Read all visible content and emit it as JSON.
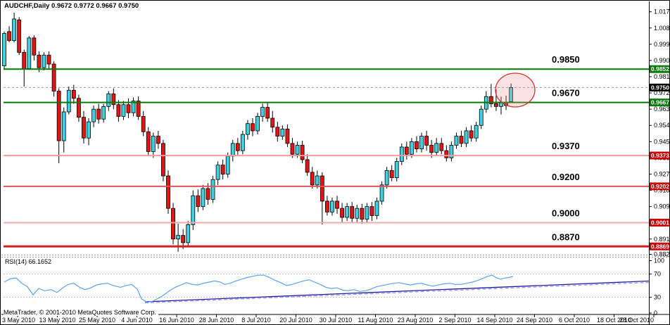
{
  "window": {
    "title_line": "AUDCHF,Daily  0.9672 0.9772 0.9667 0.9750",
    "symbol": "AUDCHF",
    "timeframe": "Daily",
    "ohlc": {
      "open": "0.9672",
      "high": "0.9772",
      "low": "0.9667",
      "close": "0.9750"
    }
  },
  "footer": {
    "copyright": "MetaTrader, © 2001-2010 MetaQuotes Software Corp."
  },
  "colors": {
    "bull": "#40d0e0",
    "bear": "#e01515",
    "wick": "#000000",
    "green_level": "#007a00",
    "current_dash": "#999999",
    "rsi_line": "#5aa2f0",
    "trend_solid": "#2020a0",
    "trend_dashed": "#9c9ce6",
    "badge_green": "#007a00",
    "badge_black": "#000000",
    "badge_red": "#cc0000",
    "ellipse_stroke": "#d83030",
    "ellipse_fill": "rgba(244,150,150,0.28)"
  },
  "price_axis": {
    "plain_ticks": [
      "1.0170",
      "1.0080",
      "0.9990",
      "0.9900",
      "0.9810",
      "0.9720",
      "0.9630",
      "0.9540",
      "0.9450",
      "0.9360",
      "0.9270",
      "0.9180",
      "0.9090",
      "0.8910",
      "0.8825"
    ],
    "badges": [
      {
        "text": "0.9852",
        "color": "#007a00"
      },
      {
        "text": "0.9750",
        "color": "#000000"
      },
      {
        "text": "0.9667",
        "color": "#007a00"
      },
      {
        "text": "0.9373",
        "color": "#cc0000"
      },
      {
        "text": "0.9202",
        "color": "#cc0000"
      },
      {
        "text": "0.9001",
        "color": "#cc0000"
      },
      {
        "text": "0.8869",
        "color": "#cc0000"
      }
    ]
  },
  "date_axis": {
    "labels": [
      "3 May 2010",
      "13 May 2010",
      "25 May 2010",
      "4 Jun 2010",
      "16 Jun 2010",
      "28 Jun 2010",
      "8 Jul 2010",
      "20 Jul 2010",
      "30 Jul 2010",
      "11 Aug 2010",
      "23 Aug 2010",
      "2 Sep 2010",
      "14 Sep 2010",
      "24 Sep 2010",
      "6 Oct 2010",
      "18 Oct 2010",
      "28 Oct 2010"
    ]
  },
  "rsi_pane": {
    "label": "RSI(14) 66.1652",
    "period": 14,
    "current_value": 66.1652,
    "axis_labels": [
      "100",
      "70",
      "30",
      "0"
    ],
    "axis_values": [
      100,
      70,
      30,
      0
    ],
    "guide_levels": [
      70,
      30
    ]
  },
  "chart_data": {
    "type": "candlestick",
    "symbol": "AUDCHF",
    "timeframe": "Daily",
    "ylim": [
      0.8815,
      1.0185
    ],
    "legend_position": "top-left",
    "grid": "horizontal-levels-only",
    "levels": [
      {
        "label": "0.9850",
        "price": 0.9852,
        "color": "#007a00",
        "width": 2
      },
      {
        "label": "0.9670",
        "price": 0.9667,
        "color": "#007a00",
        "width": 2
      },
      {
        "label": "0.9370",
        "price": 0.9373,
        "color": "#f49a9a",
        "width": 2
      },
      {
        "label": "0.9200",
        "price": 0.9202,
        "color": "#e35555",
        "width": 2
      },
      {
        "label": "0.9000",
        "price": 0.9001,
        "color": "#f4a8a8",
        "width": 2
      },
      {
        "label": "0.8870",
        "price": 0.8869,
        "color": "#d62020",
        "width": 3
      }
    ],
    "current_price_line": {
      "price": 0.975,
      "style": "dashed"
    },
    "highlight_ellipse": {
      "cx": 731,
      "cy": 127,
      "rx": 28,
      "ry": 24
    },
    "candles_columns": [
      "open",
      "high",
      "low",
      "close"
    ],
    "candles": [
      [
        0.987,
        1.006,
        0.985,
        1.005
      ],
      [
        1.006,
        1.009,
        1.0,
        1.001
      ],
      [
        1.001,
        1.0165,
        1.0,
        1.013
      ],
      [
        1.0125,
        1.014,
        0.993,
        0.9945
      ],
      [
        0.9945,
        0.996,
        0.9755,
        0.9855
      ],
      [
        0.9855,
        1.0035,
        0.985,
        1.0025
      ],
      [
        1.0025,
        1.004,
        0.99,
        0.993
      ],
      [
        0.993,
        0.995,
        0.9835,
        0.986
      ],
      [
        0.986,
        0.9945,
        0.9845,
        0.993
      ],
      [
        0.993,
        0.995,
        0.9855,
        0.988
      ],
      [
        0.988,
        0.9895,
        0.97,
        0.973
      ],
      [
        0.973,
        0.9745,
        0.933,
        0.9455
      ],
      [
        0.9455,
        0.964,
        0.939,
        0.9615
      ],
      [
        0.9615,
        0.9755,
        0.96,
        0.9735
      ],
      [
        0.9735,
        0.9765,
        0.966,
        0.969
      ],
      [
        0.969,
        0.971,
        0.956,
        0.9585
      ],
      [
        0.9585,
        0.962,
        0.944,
        0.947
      ],
      [
        0.947,
        0.958,
        0.943,
        0.956
      ],
      [
        0.956,
        0.965,
        0.953,
        0.963
      ],
      [
        0.963,
        0.966,
        0.955,
        0.9575
      ],
      [
        0.9575,
        0.966,
        0.9555,
        0.9645
      ],
      [
        0.9645,
        0.973,
        0.962,
        0.9715
      ],
      [
        0.9715,
        0.9745,
        0.963,
        0.9655
      ],
      [
        0.9655,
        0.968,
        0.956,
        0.959
      ],
      [
        0.959,
        0.9675,
        0.957,
        0.9655
      ],
      [
        0.9655,
        0.969,
        0.958,
        0.961
      ],
      [
        0.961,
        0.9695,
        0.959,
        0.9675
      ],
      [
        0.9675,
        0.97,
        0.957,
        0.959
      ],
      [
        0.959,
        0.962,
        0.948,
        0.9505
      ],
      [
        0.9505,
        0.953,
        0.937,
        0.9395
      ],
      [
        0.9395,
        0.95,
        0.936,
        0.948
      ],
      [
        0.948,
        0.951,
        0.941,
        0.944
      ],
      [
        0.944,
        0.946,
        0.923,
        0.926
      ],
      [
        0.926,
        0.929,
        0.905,
        0.908
      ],
      [
        0.908,
        0.911,
        0.888,
        0.891
      ],
      [
        0.891,
        0.8995,
        0.884,
        0.893
      ],
      [
        0.893,
        0.8965,
        0.8855,
        0.889
      ],
      [
        0.889,
        0.901,
        0.887,
        0.899
      ],
      [
        0.899,
        0.918,
        0.896,
        0.915
      ],
      [
        0.915,
        0.9185,
        0.906,
        0.909
      ],
      [
        0.909,
        0.921,
        0.907,
        0.919
      ],
      [
        0.919,
        0.922,
        0.91,
        0.913
      ],
      [
        0.913,
        0.926,
        0.911,
        0.924
      ],
      [
        0.924,
        0.934,
        0.921,
        0.932
      ],
      [
        0.932,
        0.935,
        0.924,
        0.927
      ],
      [
        0.927,
        0.939,
        0.925,
        0.937
      ],
      [
        0.937,
        0.946,
        0.934,
        0.944
      ],
      [
        0.944,
        0.947,
        0.937,
        0.94
      ],
      [
        0.94,
        0.951,
        0.938,
        0.949
      ],
      [
        0.949,
        0.957,
        0.946,
        0.955
      ],
      [
        0.955,
        0.958,
        0.948,
        0.951
      ],
      [
        0.951,
        0.961,
        0.949,
        0.959
      ],
      [
        0.959,
        0.966,
        0.956,
        0.964
      ],
      [
        0.964,
        0.9665,
        0.956,
        0.958
      ],
      [
        0.958,
        0.962,
        0.95,
        0.953
      ],
      [
        0.953,
        0.956,
        0.945,
        0.948
      ],
      [
        0.948,
        0.954,
        0.946,
        0.952
      ],
      [
        0.952,
        0.9545,
        0.942,
        0.944
      ],
      [
        0.944,
        0.947,
        0.936,
        0.938
      ],
      [
        0.938,
        0.945,
        0.936,
        0.943
      ],
      [
        0.943,
        0.9455,
        0.933,
        0.935
      ],
      [
        0.935,
        0.938,
        0.926,
        0.928
      ],
      [
        0.928,
        0.931,
        0.919,
        0.921
      ],
      [
        0.921,
        0.929,
        0.919,
        0.926
      ],
      [
        0.926,
        0.928,
        0.899,
        0.912
      ],
      [
        0.912,
        0.915,
        0.904,
        0.906
      ],
      [
        0.906,
        0.914,
        0.904,
        0.912
      ],
      [
        0.912,
        0.915,
        0.905,
        0.908
      ],
      [
        0.908,
        0.911,
        0.9,
        0.903
      ],
      [
        0.903,
        0.911,
        0.901,
        0.909
      ],
      [
        0.909,
        0.9115,
        0.9,
        0.9025
      ],
      [
        0.9025,
        0.91,
        0.9005,
        0.908
      ],
      [
        0.908,
        0.9105,
        0.8995,
        0.902
      ],
      [
        0.902,
        0.911,
        0.9,
        0.909
      ],
      [
        0.909,
        0.9115,
        0.901,
        0.904
      ],
      [
        0.904,
        0.914,
        0.902,
        0.912
      ],
      [
        0.912,
        0.923,
        0.91,
        0.921
      ],
      [
        0.921,
        0.931,
        0.919,
        0.929
      ],
      [
        0.929,
        0.932,
        0.923,
        0.925
      ],
      [
        0.925,
        0.936,
        0.923,
        0.934
      ],
      [
        0.934,
        0.944,
        0.932,
        0.942
      ],
      [
        0.942,
        0.945,
        0.935,
        0.938
      ],
      [
        0.938,
        0.947,
        0.936,
        0.945
      ],
      [
        0.945,
        0.948,
        0.939,
        0.941
      ],
      [
        0.941,
        0.95,
        0.939,
        0.948
      ],
      [
        0.948,
        0.951,
        0.94,
        0.943
      ],
      [
        0.943,
        0.946,
        0.936,
        0.939
      ],
      [
        0.939,
        0.947,
        0.937,
        0.944
      ],
      [
        0.944,
        0.947,
        0.938,
        0.94
      ],
      [
        0.94,
        0.943,
        0.934,
        0.936
      ],
      [
        0.936,
        0.945,
        0.934,
        0.943
      ],
      [
        0.943,
        0.95,
        0.941,
        0.948
      ],
      [
        0.948,
        0.951,
        0.942,
        0.944
      ],
      [
        0.944,
        0.953,
        0.942,
        0.951
      ],
      [
        0.951,
        0.954,
        0.945,
        0.947
      ],
      [
        0.947,
        0.956,
        0.945,
        0.954
      ],
      [
        0.954,
        0.965,
        0.952,
        0.963
      ],
      [
        0.963,
        0.973,
        0.961,
        0.97
      ],
      [
        0.97,
        0.977,
        0.964,
        0.966
      ],
      [
        0.966,
        0.974,
        0.962,
        0.9645
      ],
      [
        0.9645,
        0.97,
        0.96,
        0.9665
      ],
      [
        0.9665,
        0.9705,
        0.9625,
        0.965
      ],
      [
        0.9672,
        0.9772,
        0.9667,
        0.975
      ]
    ],
    "rsi": {
      "period": 14,
      "last_value": 66.1652,
      "points_xv": [
        [
          5,
          56
        ],
        [
          14,
          62
        ],
        [
          22,
          63
        ],
        [
          30,
          54
        ],
        [
          38,
          48
        ],
        [
          46,
          34
        ],
        [
          54,
          45
        ],
        [
          62,
          41
        ],
        [
          72,
          43
        ],
        [
          80,
          38
        ],
        [
          88,
          46
        ],
        [
          96,
          52
        ],
        [
          104,
          54
        ],
        [
          112,
          47
        ],
        [
          120,
          43
        ],
        [
          128,
          46
        ],
        [
          136,
          51
        ],
        [
          144,
          53
        ],
        [
          152,
          54
        ],
        [
          160,
          50
        ],
        [
          170,
          47
        ],
        [
          178,
          50
        ],
        [
          186,
          52
        ],
        [
          194,
          44
        ],
        [
          200,
          27
        ],
        [
          208,
          21
        ],
        [
          216,
          23
        ],
        [
          224,
          28
        ],
        [
          232,
          34
        ],
        [
          240,
          41
        ],
        [
          248,
          47
        ],
        [
          256,
          51
        ],
        [
          264,
          55
        ],
        [
          272,
          52
        ],
        [
          280,
          51
        ],
        [
          288,
          54
        ],
        [
          296,
          56
        ],
        [
          304,
          58
        ],
        [
          312,
          56
        ],
        [
          318,
          52
        ],
        [
          326,
          54
        ],
        [
          334,
          58
        ],
        [
          342,
          61
        ],
        [
          350,
          64
        ],
        [
          358,
          66
        ],
        [
          366,
          68
        ],
        [
          374,
          68
        ],
        [
          382,
          64
        ],
        [
          390,
          59
        ],
        [
          398,
          55
        ],
        [
          406,
          50
        ],
        [
          414,
          52
        ],
        [
          422,
          55
        ],
        [
          430,
          58
        ],
        [
          438,
          60
        ],
        [
          446,
          56
        ],
        [
          454,
          52
        ],
        [
          462,
          47
        ],
        [
          470,
          45
        ],
        [
          478,
          46
        ],
        [
          486,
          42
        ],
        [
          494,
          41
        ],
        [
          502,
          43
        ],
        [
          510,
          40
        ],
        [
          518,
          41
        ],
        [
          526,
          44
        ],
        [
          534,
          48
        ],
        [
          542,
          50
        ],
        [
          550,
          52
        ],
        [
          558,
          54
        ],
        [
          566,
          55
        ],
        [
          574,
          53
        ],
        [
          582,
          51
        ],
        [
          590,
          53
        ],
        [
          598,
          54
        ],
        [
          606,
          51
        ],
        [
          614,
          49
        ],
        [
          622,
          51
        ],
        [
          630,
          53
        ],
        [
          638,
          54
        ],
        [
          646,
          52
        ],
        [
          654,
          52
        ],
        [
          662,
          54
        ],
        [
          670,
          56
        ],
        [
          678,
          59
        ],
        [
          686,
          63
        ],
        [
          692,
          66
        ],
        [
          698,
          68
        ],
        [
          704,
          64
        ],
        [
          710,
          61
        ],
        [
          716,
          63
        ],
        [
          722,
          64
        ],
        [
          728,
          66
        ]
      ],
      "trendlines": [
        {
          "x1": 205,
          "y1": 429.5,
          "x2": 921,
          "y2": 400.5,
          "style": "dashed"
        },
        {
          "x1": 205,
          "y1": 428,
          "x2": 921,
          "y2": 398.5,
          "style": "solid"
        }
      ]
    }
  }
}
